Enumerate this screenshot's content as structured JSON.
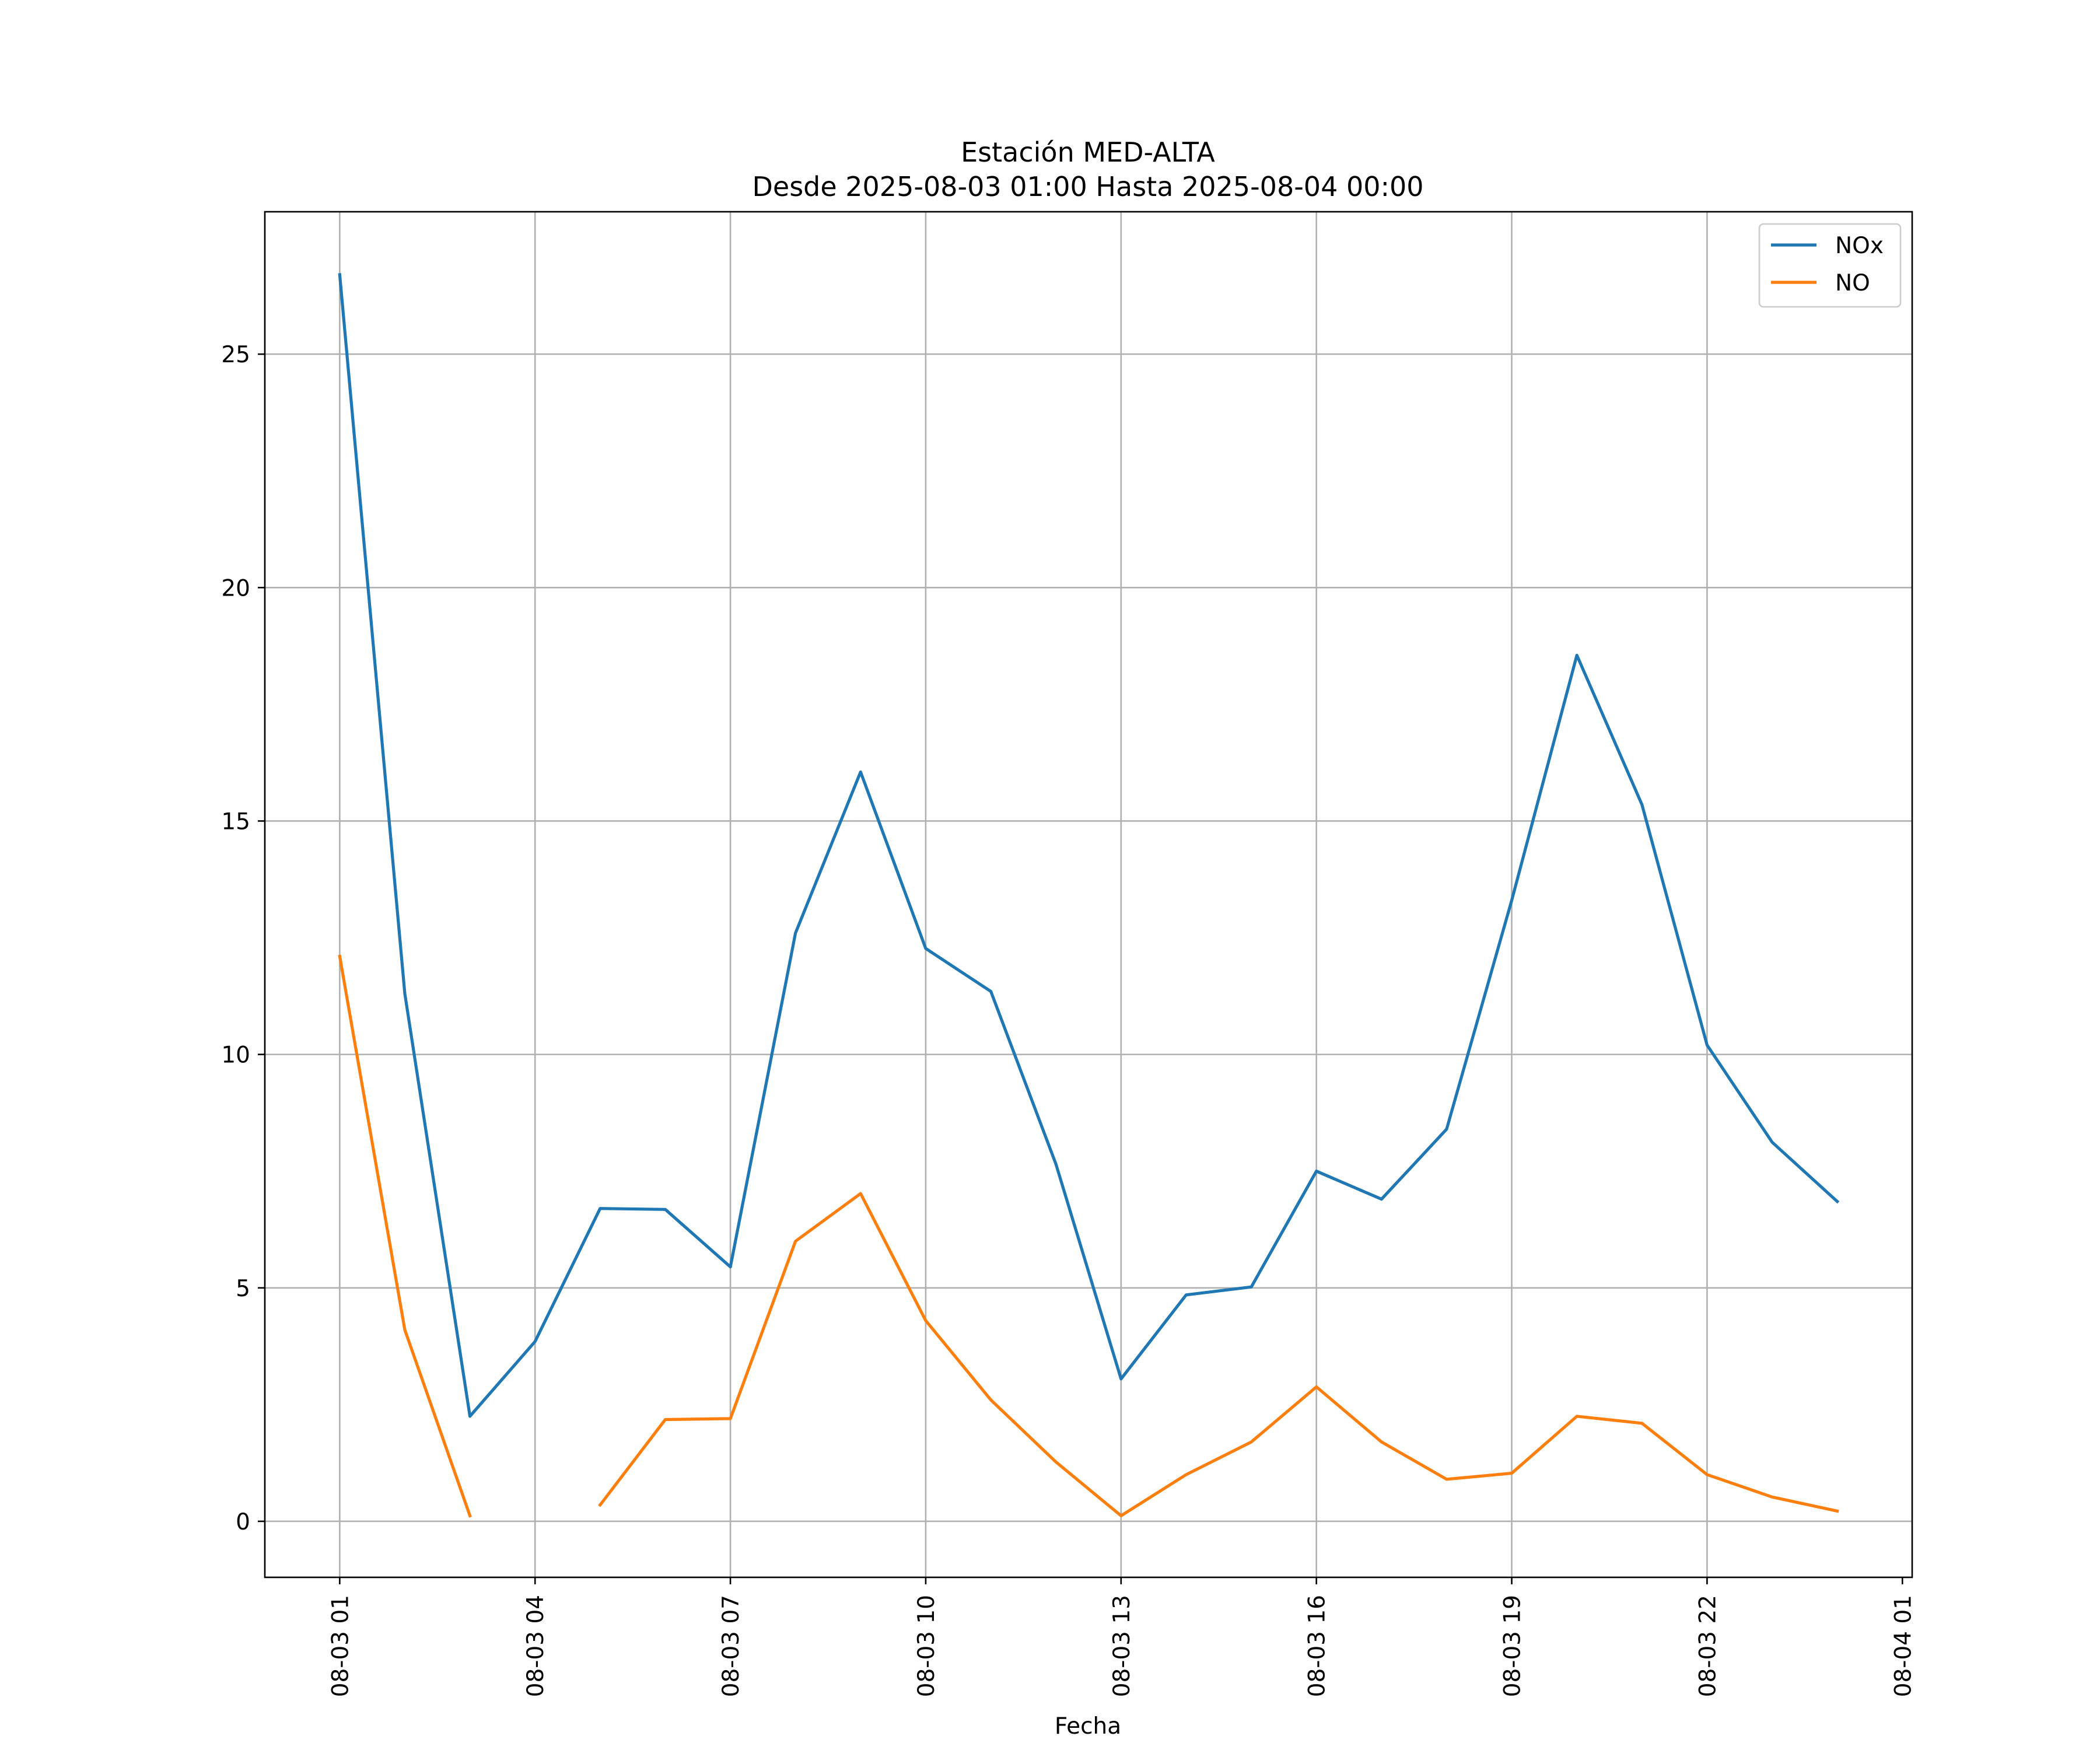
{
  "chart_data": {
    "type": "line",
    "title": "Estación MED-ALTA",
    "subtitle": "Desde 2025-08-03 01:00 Hasta 2025-08-04 00:00",
    "xlabel": "Fecha",
    "ylabel": "",
    "grid": true,
    "legend_position": "top-right",
    "x_tick_labels": [
      "08-03 01",
      "08-03 04",
      "08-03 07",
      "08-03 10",
      "08-03 13",
      "08-03 16",
      "08-03 19",
      "08-03 22",
      "08-04 01"
    ],
    "x_tick_hours": [
      1,
      4,
      7,
      10,
      13,
      16,
      19,
      22,
      25
    ],
    "x_hours": [
      1,
      2,
      3,
      4,
      5,
      6,
      7,
      8,
      9,
      10,
      11,
      12,
      13,
      14,
      15,
      16,
      17,
      18,
      19,
      20,
      21,
      22,
      23,
      24
    ],
    "xlim_hours": [
      -0.15,
      25.15
    ],
    "ylim": [
      -1.2,
      28.05
    ],
    "y_ticks": [
      0,
      5,
      10,
      15,
      20,
      25
    ],
    "series": [
      {
        "name": "NOx",
        "color": "#1f77b4",
        "values": [
          26.7,
          11.3,
          2.25,
          3.85,
          6.7,
          6.68,
          5.45,
          12.6,
          16.05,
          12.27,
          11.35,
          7.65,
          3.05,
          4.85,
          5.02,
          7.5,
          6.9,
          8.4,
          13.3,
          18.55,
          15.35,
          10.2,
          8.12,
          6.85
        ]
      },
      {
        "name": "NO",
        "color": "#ff7f0e",
        "values": [
          12.1,
          4.1,
          0.12,
          null,
          0.35,
          2.18,
          2.2,
          6.0,
          7.02,
          4.3,
          2.6,
          1.27,
          0.12,
          1.0,
          1.7,
          2.88,
          1.7,
          0.9,
          1.03,
          2.25,
          2.1,
          1.0,
          0.52,
          0.22
        ]
      }
    ]
  }
}
